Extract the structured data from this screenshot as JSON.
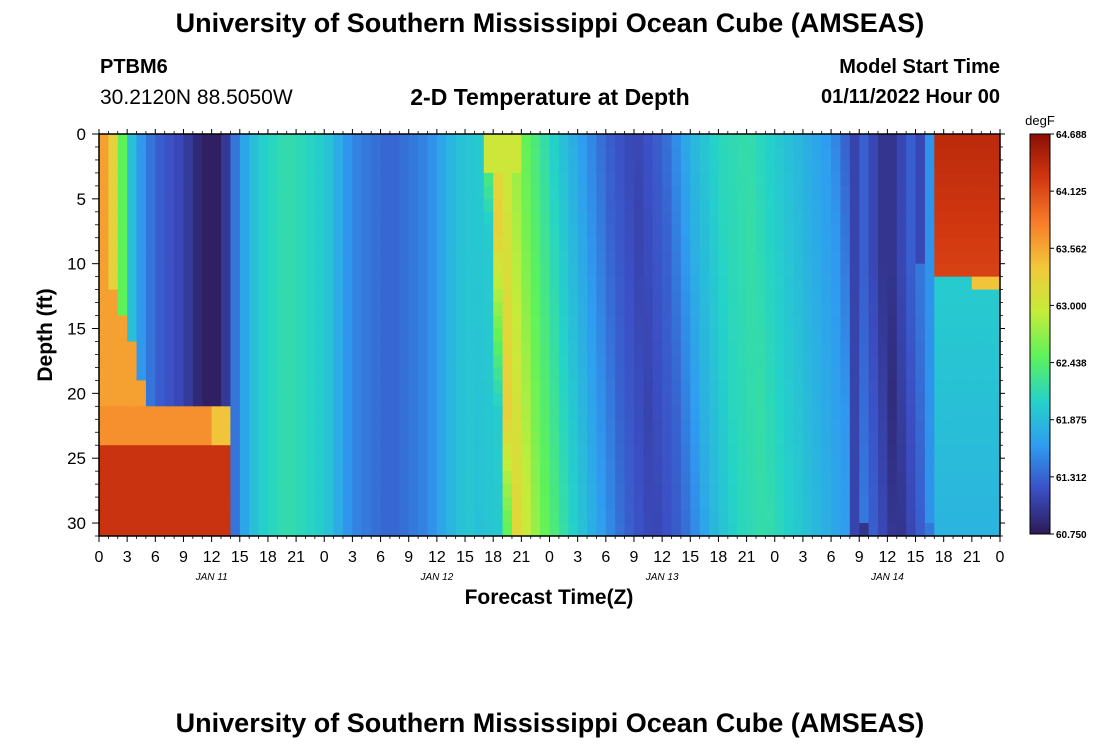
{
  "header": {
    "title": "University of Southern Mississippi Ocean Cube (AMSEAS)",
    "station": "PTBM6",
    "coordinates": "30.2120N  88.5050W",
    "subtitle": "2-D Temperature at Depth",
    "model_start_label": "Model Start Time",
    "model_start_value": "01/11/2022 Hour 00"
  },
  "footer": {
    "title": "University of Southern Mississippi Ocean Cube (AMSEAS)"
  },
  "chart_data": {
    "type": "heatmap",
    "xlabel": "Forecast Time(Z)",
    "ylabel": "Depth (ft)",
    "x_hours_range": [
      0,
      96
    ],
    "x_tick_labels": [
      "0",
      "3",
      "6",
      "9",
      "12",
      "15",
      "18",
      "21",
      "0",
      "3",
      "6",
      "9",
      "12",
      "15",
      "18",
      "21",
      "0",
      "3",
      "6",
      "9",
      "12",
      "15",
      "18",
      "21",
      "0",
      "3",
      "6",
      "9",
      "12",
      "15",
      "18",
      "21",
      "0"
    ],
    "day_labels": [
      "JAN 11",
      "JAN 12",
      "JAN 13",
      "JAN 14"
    ],
    "y_range_ft": [
      0,
      31
    ],
    "y_ticks": [
      0,
      5,
      10,
      15,
      20,
      25,
      30
    ],
    "colorbar": {
      "unit": "degF",
      "min": 60.75,
      "max": 64.688,
      "tick_labels": [
        "64.688",
        "64.125",
        "63.562",
        "63.000",
        "62.438",
        "61.875",
        "61.312",
        "60.750"
      ],
      "colors": [
        "#2c1a55",
        "#3b4fc4",
        "#2f9cf0",
        "#25d3c8",
        "#5df25a",
        "#c6ec3a",
        "#f2c83a",
        "#f77d2a",
        "#d23810",
        "#8b0f05"
      ]
    },
    "surface_profile_degF": [
      {
        "hour": 0,
        "value": 63.9
      },
      {
        "hour": 1,
        "value": 63.6
      },
      {
        "hour": 2,
        "value": 62.9
      },
      {
        "hour": 3,
        "value": 62.1
      },
      {
        "hour": 4,
        "value": 61.7
      },
      {
        "hour": 6,
        "value": 61.3
      },
      {
        "hour": 9,
        "value": 61.1
      },
      {
        "hour": 11,
        "value": 60.8
      },
      {
        "hour": 13,
        "value": 60.8
      },
      {
        "hour": 14,
        "value": 61.2
      },
      {
        "hour": 15,
        "value": 61.6
      },
      {
        "hour": 17,
        "value": 62.0
      },
      {
        "hour": 20,
        "value": 62.2
      },
      {
        "hour": 24,
        "value": 62.0
      },
      {
        "hour": 27,
        "value": 61.5
      },
      {
        "hour": 31,
        "value": 61.3
      },
      {
        "hour": 35,
        "value": 61.5
      },
      {
        "hour": 38,
        "value": 61.9
      },
      {
        "hour": 41,
        "value": 62.0
      },
      {
        "hour": 42,
        "value": 63.3
      },
      {
        "hour": 45,
        "value": 62.6
      },
      {
        "hour": 48,
        "value": 62.1
      },
      {
        "hour": 51,
        "value": 61.7
      },
      {
        "hour": 54,
        "value": 61.3
      },
      {
        "hour": 57,
        "value": 61.1
      },
      {
        "hour": 60,
        "value": 61.3
      },
      {
        "hour": 63,
        "value": 61.8
      },
      {
        "hour": 66,
        "value": 62.1
      },
      {
        "hour": 69,
        "value": 62.2
      },
      {
        "hour": 72,
        "value": 62.0
      },
      {
        "hour": 75,
        "value": 61.8
      },
      {
        "hour": 78,
        "value": 61.6
      },
      {
        "hour": 81,
        "value": 61.0
      },
      {
        "hour": 84,
        "value": 60.8
      },
      {
        "hour": 87,
        "value": 60.9
      },
      {
        "hour": 89,
        "value": 61.8
      },
      {
        "hour": 90,
        "value": 64.3
      },
      {
        "hour": 93,
        "value": 64.5
      },
      {
        "hour": 96,
        "value": 64.6
      }
    ]
  }
}
